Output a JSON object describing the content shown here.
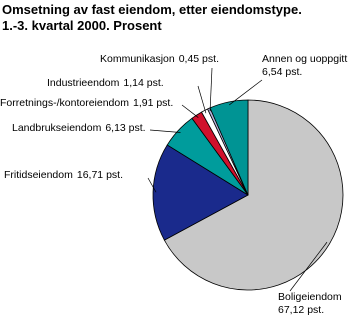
{
  "chart_data": {
    "type": "pie",
    "title": "Omsetning av fast eiendom, etter eiendomstype.",
    "subtitle": "1.-3. kvartal 2000. Prosent",
    "categories": [
      "Boligeiendom",
      "Fritidseiendom",
      "Landbrukseiendom",
      "Forretnings-/kontoreiendom",
      "Industrieendom",
      "Kommunikasjon",
      "Annen og uoppgitt"
    ],
    "values": [
      67.12,
      16.71,
      6.13,
      1.91,
      1.14,
      0.45,
      6.54
    ],
    "value_labels": [
      "67,12 pst.",
      "16,71 pst.",
      "6,13 pst.",
      "1,91 pst.",
      "1,14 pst.",
      "0,45 pst.",
      "6,54 pst."
    ],
    "colors": [
      "#c8c8c8",
      "#1a2a8c",
      "#009c9c",
      "#d0102c",
      "#ffffff",
      "#b4b4dc",
      "#009494"
    ]
  }
}
